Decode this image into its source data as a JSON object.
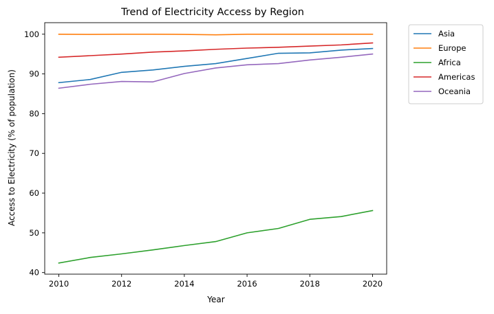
{
  "chart_data": {
    "type": "line",
    "title": "Trend of Electricity Access by Region",
    "xlabel": "Year",
    "ylabel": "Access to Electricity (% of population)",
    "x": [
      2010,
      2011,
      2012,
      2013,
      2014,
      2015,
      2016,
      2017,
      2018,
      2019,
      2020
    ],
    "xlim": [
      2009.55,
      2020.45
    ],
    "ylim": [
      39.6,
      102.9
    ],
    "xticks": [
      2010,
      2012,
      2014,
      2016,
      2018,
      2020
    ],
    "yticks": [
      40,
      50,
      60,
      70,
      80,
      90,
      100
    ],
    "grid": false,
    "legend_position": "outside-upper-right",
    "series": [
      {
        "name": "Asia",
        "color": "#1f77b4",
        "values": [
          87.8,
          88.6,
          90.4,
          91.0,
          91.9,
          92.6,
          93.9,
          95.2,
          95.3,
          96.0,
          96.4
        ]
      },
      {
        "name": "Europe",
        "color": "#ff7f0e",
        "values": [
          100.0,
          99.95,
          100.0,
          100.0,
          99.95,
          99.85,
          100.0,
          100.0,
          100.0,
          100.0,
          100.0
        ]
      },
      {
        "name": "Africa",
        "color": "#2ca02c",
        "values": [
          42.4,
          43.8,
          44.7,
          45.7,
          46.8,
          47.8,
          50.0,
          51.1,
          53.4,
          54.1,
          55.6
        ]
      },
      {
        "name": "Americas",
        "color": "#d62728",
        "values": [
          94.2,
          94.6,
          95.0,
          95.5,
          95.8,
          96.2,
          96.5,
          96.7,
          97.0,
          97.3,
          97.8
        ]
      },
      {
        "name": "Oceania",
        "color": "#9467bd",
        "values": [
          86.4,
          87.4,
          88.1,
          88.0,
          90.1,
          91.5,
          92.3,
          92.6,
          93.5,
          94.2,
          95.0
        ]
      }
    ]
  }
}
